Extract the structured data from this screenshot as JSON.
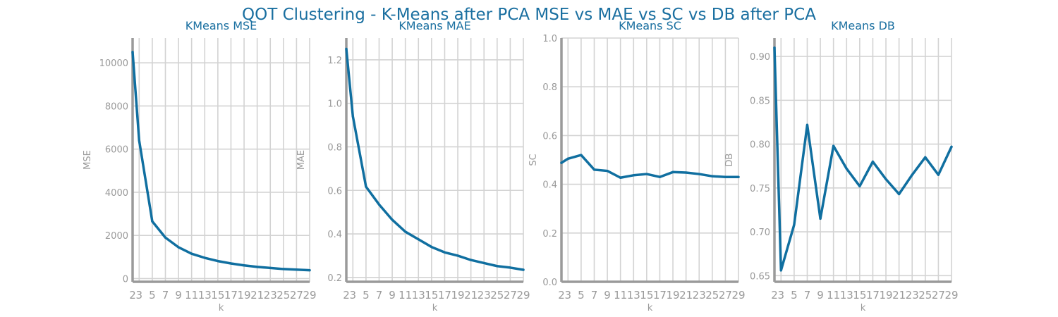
{
  "figure": {
    "title": "QOT Clustering - K-Means after PCA MSE vs MAE vs SC vs DB after PCA",
    "series_color": "#106fa0",
    "grid_color": "#d3d3d3",
    "spine_color": "#9a9a9a",
    "text_color": "#9a9a9a",
    "title_color": "#1a6fa0"
  },
  "chart_data": [
    {
      "type": "line",
      "title": "KMeans MSE",
      "xlabel": "k",
      "ylabel": "MSE",
      "x": [
        2,
        3,
        5,
        7,
        9,
        11,
        13,
        15,
        17,
        19,
        21,
        23,
        25,
        27,
        29
      ],
      "x_ticks": [
        2,
        3,
        5,
        7,
        9,
        11,
        13,
        15,
        17,
        19,
        21,
        23,
        25,
        27,
        29
      ],
      "y_ticks": [
        0,
        2000,
        4000,
        6000,
        8000,
        10000
      ],
      "y_tick_labels": [
        "0",
        "2000",
        "4000",
        "6000",
        "8000",
        "10000"
      ],
      "xlim": [
        2,
        29
      ],
      "ylim": [
        -150,
        11150
      ],
      "grid": true,
      "series": [
        {
          "values": [
            10500,
            6400,
            2650,
            1900,
            1450,
            1150,
            960,
            810,
            700,
            610,
            540,
            490,
            440,
            415,
            385
          ]
        }
      ]
    },
    {
      "type": "line",
      "title": "KMeans MAE",
      "xlabel": "k",
      "ylabel": "MAE",
      "x": [
        2,
        3,
        5,
        7,
        9,
        11,
        13,
        15,
        17,
        19,
        21,
        23,
        25,
        27,
        29
      ],
      "x_ticks": [
        2,
        3,
        5,
        7,
        9,
        11,
        13,
        15,
        17,
        19,
        21,
        23,
        25,
        27,
        29
      ],
      "y_ticks": [
        0.2,
        0.4,
        0.6,
        0.8,
        1.0,
        1.2
      ],
      "y_tick_labels": [
        "0.2",
        "0.4",
        "0.6",
        "0.8",
        "1.0",
        "1.2"
      ],
      "xlim": [
        2,
        29
      ],
      "ylim": [
        0.18,
        1.3
      ],
      "grid": true,
      "series": [
        {
          "values": [
            1.25,
            0.94,
            0.617,
            0.535,
            0.465,
            0.41,
            0.375,
            0.34,
            0.315,
            0.3,
            0.28,
            0.266,
            0.252,
            0.245,
            0.235
          ]
        }
      ]
    },
    {
      "type": "line",
      "title": "KMeans SC",
      "xlabel": "k",
      "ylabel": "SC",
      "x": [
        2,
        3,
        5,
        7,
        9,
        11,
        13,
        15,
        17,
        19,
        21,
        23,
        25,
        27,
        29
      ],
      "x_ticks": [
        2,
        3,
        5,
        7,
        9,
        11,
        13,
        15,
        17,
        19,
        21,
        23,
        25,
        27,
        29
      ],
      "y_ticks": [
        0.0,
        0.2,
        0.4,
        0.6,
        0.8,
        1.0
      ],
      "y_tick_labels": [
        "0.0",
        "0.2",
        "0.4",
        "0.6",
        "0.8",
        "1.0"
      ],
      "xlim": [
        2,
        29
      ],
      "ylim": [
        0.0,
        1.0
      ],
      "grid": true,
      "series": [
        {
          "values": [
            0.488,
            0.505,
            0.52,
            0.46,
            0.455,
            0.427,
            0.437,
            0.442,
            0.43,
            0.45,
            0.448,
            0.442,
            0.433,
            0.43,
            0.43
          ]
        }
      ]
    },
    {
      "type": "line",
      "title": "KMeans DB",
      "xlabel": "k",
      "ylabel": "DB",
      "x": [
        2,
        3,
        5,
        7,
        9,
        11,
        13,
        15,
        17,
        19,
        21,
        23,
        25,
        27,
        29
      ],
      "x_ticks": [
        2,
        3,
        5,
        7,
        9,
        11,
        13,
        15,
        17,
        19,
        21,
        23,
        25,
        27,
        29
      ],
      "y_ticks": [
        0.65,
        0.7,
        0.75,
        0.8,
        0.85,
        0.9
      ],
      "y_tick_labels": [
        "0.65",
        "0.70",
        "0.75",
        "0.80",
        "0.85",
        "0.90"
      ],
      "xlim": [
        2,
        29
      ],
      "ylim": [
        0.643,
        0.921
      ],
      "grid": true,
      "series": [
        {
          "values": [
            0.91,
            0.656,
            0.708,
            0.822,
            0.715,
            0.798,
            0.772,
            0.752,
            0.78,
            0.76,
            0.743,
            0.765,
            0.785,
            0.765,
            0.797
          ]
        }
      ]
    }
  ]
}
